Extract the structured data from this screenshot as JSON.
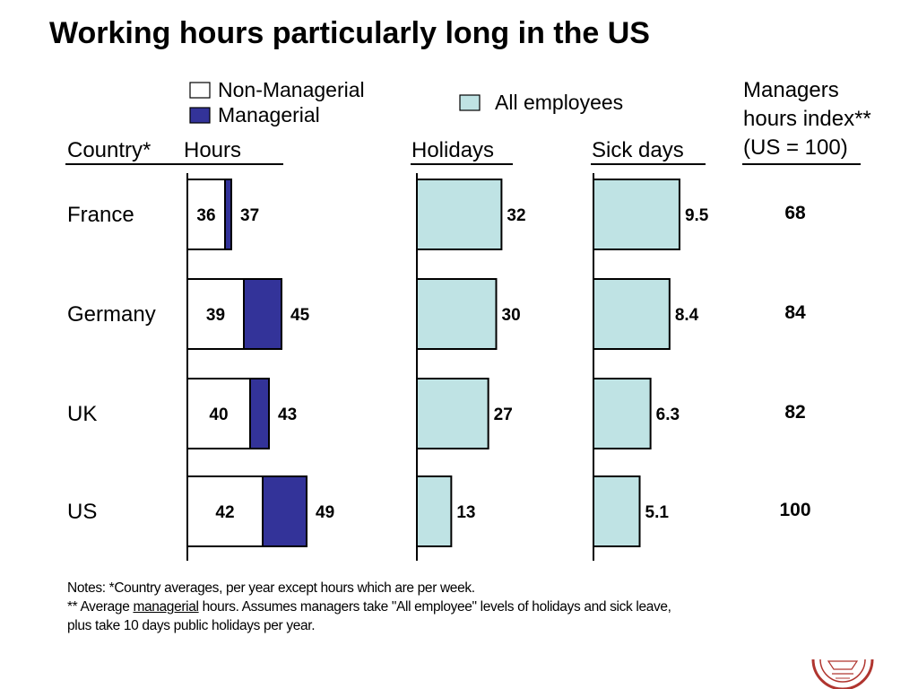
{
  "slide": {
    "title": "Working hours particularly long in the US"
  },
  "legend": {
    "non_managerial": "Non-Managerial",
    "managerial": "Managerial",
    "all_employees": "All employees"
  },
  "headers": {
    "country": "Country*",
    "hours": "Hours",
    "holidays": "Holidays",
    "sick_days": "Sick days",
    "index_line1": "Managers",
    "index_line2": "hours index**",
    "index_line3": "(US = 100)"
  },
  "colors": {
    "managerial": "#333399",
    "all_employees": "#bfe3e4",
    "non_managerial": "#ffffff"
  },
  "chart_data": {
    "type": "bar",
    "categories": [
      "France",
      "Germany",
      "UK",
      "US"
    ],
    "series": [
      {
        "name": "Non-Managerial",
        "panel": "Hours",
        "values": [
          36,
          39,
          40,
          42
        ],
        "labels": [
          "36",
          "39",
          "40",
          "42"
        ]
      },
      {
        "name": "Managerial",
        "panel": "Hours",
        "values": [
          37,
          45,
          43,
          49
        ],
        "labels": [
          "37",
          "45",
          "43",
          "49"
        ]
      },
      {
        "name": "All employees",
        "panel": "Holidays",
        "values": [
          32,
          30,
          27,
          13
        ],
        "labels": [
          "32",
          "30",
          "27",
          "13"
        ]
      },
      {
        "name": "All employees",
        "panel": "Sick days",
        "values": [
          9.5,
          8.4,
          6.3,
          5.1
        ],
        "labels": [
          "9.5",
          "8.4",
          "6.3",
          "5.1"
        ]
      }
    ],
    "index": {
      "values": [
        68,
        84,
        82,
        100
      ],
      "labels": [
        "68",
        "84",
        "82",
        "100"
      ]
    },
    "ranges": {
      "hours": [
        0,
        55
      ],
      "holidays": [
        0,
        40
      ],
      "sick_days": [
        0,
        12
      ]
    },
    "grid": false,
    "legend_position": "top"
  },
  "notes": {
    "line1": "Notes: *Country averages, per year except hours which are per week.",
    "line2_pre": "** Average ",
    "line2_u": "managerial",
    "line2_post": " hours. Assumes managers take \"All employee\" levels of holidays and sick leave,",
    "line3": "plus take 10 days public holidays per year."
  },
  "seal": {
    "name": "university-seal-icon"
  }
}
